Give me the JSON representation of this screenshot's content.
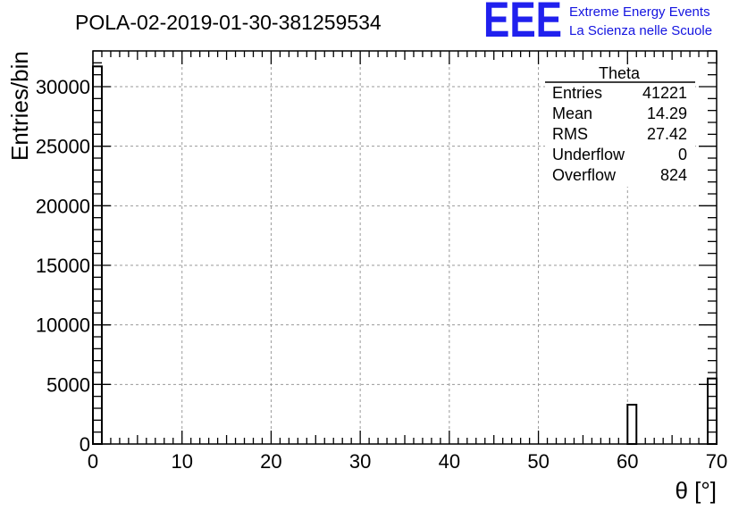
{
  "chart_data": {
    "type": "bar",
    "title": "POLA-02-2019-01-30-381259534",
    "xlabel": "θ [°]",
    "ylabel": "Entries/bin",
    "xlim": [
      0,
      70
    ],
    "ylim": [
      0,
      33000
    ],
    "grid": true,
    "x_ticks": [
      0,
      10,
      20,
      30,
      40,
      50,
      60,
      70
    ],
    "y_ticks": [
      0,
      5000,
      10000,
      15000,
      20000,
      25000,
      30000
    ],
    "bin_width": 1,
    "bins": [
      {
        "x0": 0,
        "x1": 1,
        "value": 31700
      },
      {
        "x0": 60,
        "x1": 61,
        "value": 3300
      },
      {
        "x0": 69,
        "x1": 70,
        "value": 5500
      }
    ],
    "stats_box": {
      "name": "Theta",
      "rows": [
        {
          "label": "Entries",
          "value": "41221"
        },
        {
          "label": "Mean",
          "value": "14.29"
        },
        {
          "label": "RMS",
          "value": "27.42"
        },
        {
          "label": "Underflow",
          "value": "0"
        },
        {
          "label": "Overflow",
          "value": "824"
        }
      ]
    }
  },
  "logo": {
    "mark": "EEE",
    "line1": "Extreme Energy Events",
    "line2": "La Scienza nelle Scuole",
    "color": "#1a1aee"
  }
}
